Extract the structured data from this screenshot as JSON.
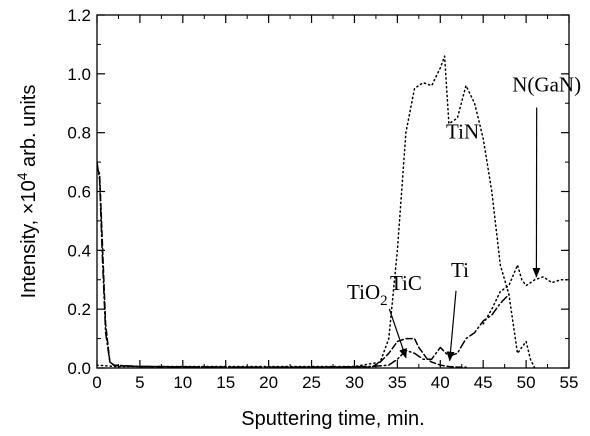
{
  "chart_data": {
    "type": "line",
    "title": "",
    "xlabel": "Sputtering time, min.",
    "ylabel": {
      "prefix": "Intensity, ×10",
      "exponent": "4",
      "suffix": " arb. units"
    },
    "xlim": [
      0,
      55
    ],
    "ylim": [
      0,
      1.2
    ],
    "x_ticks": [
      0,
      5,
      10,
      15,
      20,
      25,
      30,
      35,
      40,
      45,
      50,
      55
    ],
    "y_ticks": [
      "0.0",
      "0.2",
      "0.4",
      "0.6",
      "0.8",
      "1.0",
      "1.2"
    ],
    "grid": false,
    "legend": "none",
    "series": [
      {
        "name": "TiN",
        "style": "dotted",
        "x": [
          0,
          2,
          10,
          20,
          30,
          33,
          34,
          35,
          36,
          37,
          38,
          39,
          40,
          40.5,
          41,
          42,
          43,
          44,
          45,
          46,
          47,
          48,
          48.5,
          49,
          49.5,
          50,
          50.5,
          51
        ],
        "y": [
          0.01,
          0.005,
          0.005,
          0.005,
          0.005,
          0.02,
          0.1,
          0.4,
          0.8,
          0.95,
          0.97,
          0.96,
          1.02,
          1.06,
          0.83,
          0.85,
          0.96,
          0.9,
          0.78,
          0.6,
          0.35,
          0.25,
          0.15,
          0.05,
          0.07,
          0.09,
          0.03,
          0.0
        ]
      },
      {
        "name": "N(GaN)",
        "style": "dotted",
        "x": [
          45,
          46,
          47,
          48,
          49,
          49.5,
          50,
          51,
          52,
          53,
          54,
          55
        ],
        "y": [
          0.15,
          0.2,
          0.26,
          0.28,
          0.35,
          0.3,
          0.28,
          0.3,
          0.31,
          0.29,
          0.3,
          0.3
        ]
      },
      {
        "name": "TiC",
        "style": "dashed",
        "x": [
          0,
          0.3,
          0.6,
          1,
          1.5,
          2,
          5,
          15,
          25,
          32,
          33,
          34,
          35,
          36,
          37,
          37.5,
          38,
          38.5,
          39,
          40,
          41,
          42,
          43
        ],
        "y": [
          0.68,
          0.66,
          0.45,
          0.15,
          0.02,
          0.008,
          0.005,
          0.003,
          0.003,
          0.003,
          0.02,
          0.05,
          0.09,
          0.1,
          0.1,
          0.07,
          0.05,
          0.03,
          0.02,
          0.01,
          0.005,
          0.003,
          0.003
        ]
      },
      {
        "name": "Ti",
        "style": "dash-dot",
        "x": [
          0,
          0.3,
          0.6,
          1,
          1.5,
          2,
          5,
          15,
          25,
          32,
          34,
          35,
          36,
          37,
          38,
          39,
          40,
          41,
          42,
          43,
          44,
          45,
          46,
          47,
          48
        ],
        "y": [
          0.7,
          0.64,
          0.4,
          0.12,
          0.02,
          0.01,
          0.005,
          0.003,
          0.003,
          0.005,
          0.01,
          0.03,
          0.06,
          0.05,
          0.03,
          0.03,
          0.07,
          0.04,
          0.05,
          0.1,
          0.12,
          0.16,
          0.18,
          0.22,
          0.25
        ]
      }
    ],
    "annotations": [
      {
        "text": "TiN",
        "sub": "",
        "x": 42.6,
        "y": 0.78,
        "arrow_to": null
      },
      {
        "text": "N(GaN)",
        "sub": "",
        "x": 52.4,
        "y": 0.94,
        "arrow_to": [
          51.2,
          0.31
        ]
      },
      {
        "text": "Ti",
        "sub": "",
        "x": 42.3,
        "y": 0.31,
        "arrow_to": [
          41.1,
          0.025
        ]
      },
      {
        "text": "TiC",
        "sub": "",
        "x": 36.0,
        "y": 0.265,
        "arrow_to": null
      },
      {
        "text": "TiO",
        "sub": "2",
        "x": 31.5,
        "y": 0.235,
        "arrow_to": [
          36.0,
          0.035
        ]
      }
    ]
  }
}
